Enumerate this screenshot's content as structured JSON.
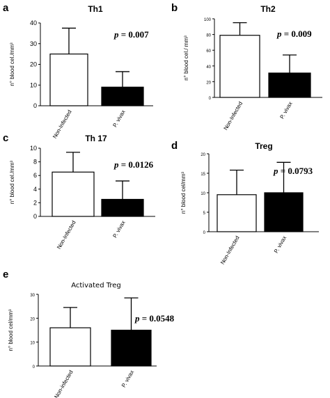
{
  "chart_data": [
    {
      "type": "bar",
      "panel_letter": "a",
      "title": "Th1",
      "ylabel": "n° blood cel./mm³",
      "categories": [
        "Non-Infected",
        "P. vivax"
      ],
      "values": [
        25,
        9
      ],
      "errors": [
        12.5,
        7.5
      ],
      "colors": [
        "#ffffff",
        "#000000"
      ],
      "ylim": [
        0,
        40
      ],
      "yticks": [
        0,
        10,
        20,
        30,
        40
      ],
      "p_label": "p",
      "p_value": "= 0.007"
    },
    {
      "type": "bar",
      "panel_letter": "b",
      "title": "Th2",
      "ylabel": "n° blood cel./ mm³",
      "categories": [
        "Non-Infected",
        "P. vivax"
      ],
      "values": [
        79,
        31
      ],
      "errors": [
        16,
        23
      ],
      "colors": [
        "#ffffff",
        "#000000"
      ],
      "ylim": [
        0,
        100
      ],
      "yticks": [
        0,
        20,
        40,
        60,
        80,
        100
      ],
      "p_label": "p",
      "p_value": "= 0.009"
    },
    {
      "type": "bar",
      "panel_letter": "c",
      "title": "Th 17",
      "ylabel": "n° blood cel./mm³",
      "categories": [
        "Non-Infected",
        "P. vivax"
      ],
      "values": [
        6.5,
        2.5
      ],
      "errors": [
        2.9,
        2.7
      ],
      "colors": [
        "#ffffff",
        "#000000"
      ],
      "ylim": [
        0,
        10
      ],
      "yticks": [
        0,
        2,
        4,
        6,
        8,
        10
      ],
      "p_label": "p",
      "p_value": "= 0.0126"
    },
    {
      "type": "bar",
      "panel_letter": "d",
      "title": "Treg",
      "ylabel": "n° blood cel/mm³",
      "categories": [
        "Non-Infected",
        "P. vivax"
      ],
      "values": [
        9.5,
        10
      ],
      "errors": [
        6.3,
        7.8
      ],
      "colors": [
        "#ffffff",
        "#000000"
      ],
      "ylim": [
        0,
        20
      ],
      "yticks": [
        0,
        5,
        10,
        15,
        20
      ],
      "p_label": "p",
      "p_value": "= 0.0793"
    },
    {
      "type": "bar",
      "panel_letter": "e",
      "title": "Activated Treg",
      "ylabel": "n° blood cel/mm³",
      "categories": [
        "Non-infected",
        "P. vivax"
      ],
      "values": [
        16,
        15
      ],
      "errors": [
        8.5,
        13.5
      ],
      "colors": [
        "#ffffff",
        "#000000"
      ],
      "ylim": [
        0,
        30
      ],
      "yticks": [
        0,
        10,
        20,
        30
      ],
      "p_label": "p",
      "p_value": "= 0.0548"
    }
  ]
}
